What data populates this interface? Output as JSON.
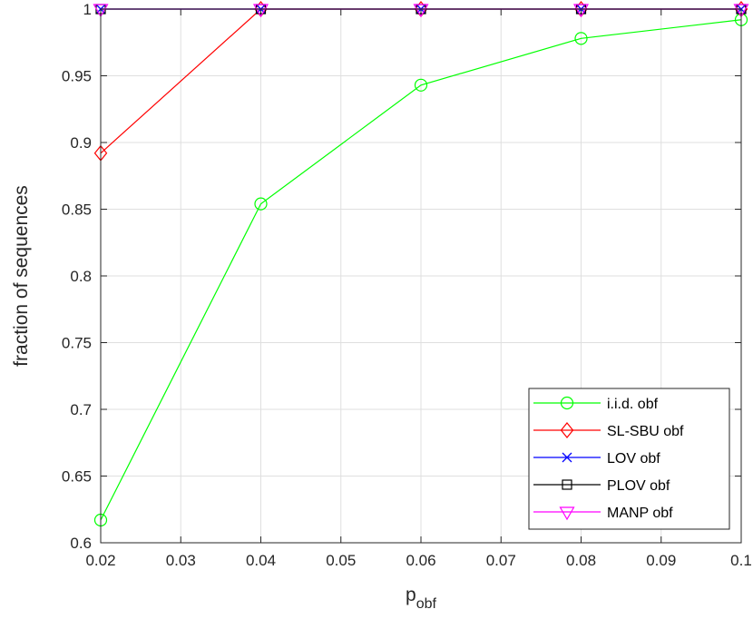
{
  "chart_data": {
    "type": "line",
    "x": [
      0.02,
      0.04,
      0.06,
      0.08,
      0.1
    ],
    "series": [
      {
        "name": "i.i.d. obf",
        "values": [
          0.617,
          0.854,
          0.943,
          0.978,
          0.992
        ],
        "color": "#00ff00",
        "marker": "circle"
      },
      {
        "name": "SL-SBU obf",
        "values": [
          0.892,
          1.0,
          1.0,
          1.0,
          1.0
        ],
        "color": "#ff0000",
        "marker": "diamond"
      },
      {
        "name": "LOV obf",
        "values": [
          1.0,
          1.0,
          1.0,
          1.0,
          1.0
        ],
        "color": "#0000ff",
        "marker": "x"
      },
      {
        "name": "PLOV obf",
        "values": [
          1.0,
          1.0,
          1.0,
          1.0,
          1.0
        ],
        "color": "#000000",
        "marker": "square"
      },
      {
        "name": "MANP obf",
        "values": [
          1.0,
          1.0,
          1.0,
          1.0,
          1.0
        ],
        "color": "#ff00ff",
        "marker": "triangle-down"
      }
    ],
    "xlabel": {
      "main": "p",
      "subscript": "obf"
    },
    "ylabel": "fraction of sequences",
    "xlim": [
      0.02,
      0.1
    ],
    "ylim": [
      0.6,
      1.0
    ],
    "xticks": [
      "0.02",
      "0.03",
      "0.04",
      "0.05",
      "0.06",
      "0.07",
      "0.08",
      "0.09",
      "0.1"
    ],
    "yticks": [
      "0.6",
      "0.65",
      "0.7",
      "0.75",
      "0.8",
      "0.85",
      "0.9",
      "0.95",
      "1"
    ],
    "grid": true,
    "legend_position": "bottom-right"
  }
}
